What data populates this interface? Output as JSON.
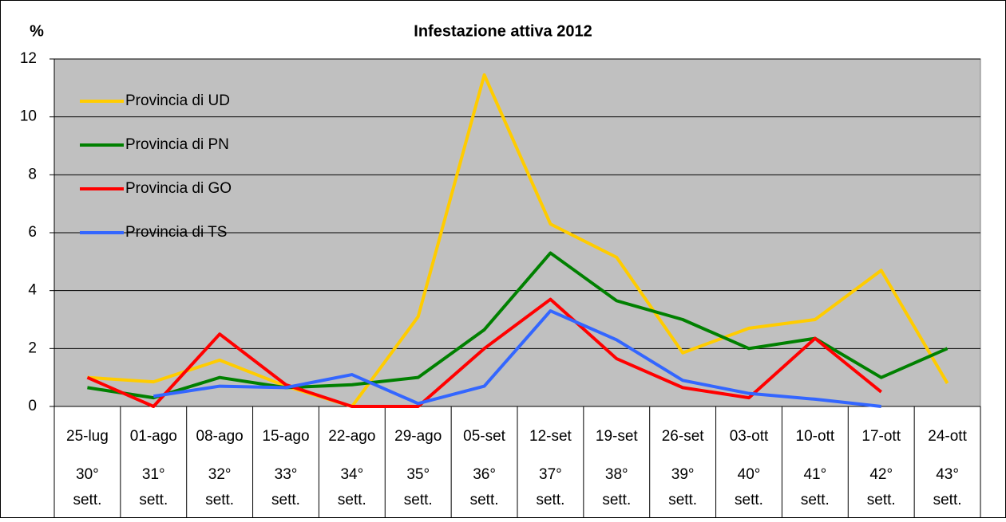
{
  "chart_data": {
    "type": "line",
    "title": "Infestazione attiva 2012",
    "ylabel": "%",
    "categories": [
      "25-lug",
      "01-ago",
      "08-ago",
      "15-ago",
      "22-ago",
      "29-ago",
      "05-set",
      "12-set",
      "19-set",
      "26-set",
      "03-ott",
      "10-ott",
      "17-ott",
      "24-ott"
    ],
    "weeks": [
      "30°",
      "31°",
      "32°",
      "33°",
      "34°",
      "35°",
      "36°",
      "37°",
      "38°",
      "39°",
      "40°",
      "41°",
      "42°",
      "43°"
    ],
    "week_unit": "sett.",
    "series": [
      {
        "name": "Provincia di UD",
        "color": "#FFCC00",
        "values": [
          1.0,
          0.85,
          1.6,
          0.7,
          0,
          3.1,
          11.45,
          6.3,
          5.15,
          1.85,
          2.7,
          3.0,
          4.7,
          0.8
        ]
      },
      {
        "name": "Provincia di PN",
        "color": "#008000",
        "values": [
          0.65,
          0.3,
          1.0,
          0.65,
          0.75,
          1.0,
          2.65,
          5.3,
          3.65,
          3.0,
          2.0,
          2.35,
          1.0,
          2.0
        ]
      },
      {
        "name": "Provincia di GO",
        "color": "#FF0000",
        "values": [
          1.0,
          0,
          2.5,
          0.75,
          0,
          0,
          2.0,
          3.7,
          1.65,
          0.65,
          0.3,
          2.35,
          0.5,
          null
        ]
      },
      {
        "name": "Provincia di TS",
        "color": "#3366FF",
        "values": [
          null,
          0.35,
          0.7,
          0.65,
          1.1,
          0.1,
          0.7,
          3.3,
          2.3,
          0.9,
          0.45,
          0.25,
          0,
          null
        ]
      }
    ],
    "ylim": [
      0,
      12
    ],
    "yticks": [
      0,
      2,
      4,
      6,
      8,
      10,
      12
    ],
    "grid": true,
    "legend": "top-left",
    "background": "#C0C0C0"
  }
}
